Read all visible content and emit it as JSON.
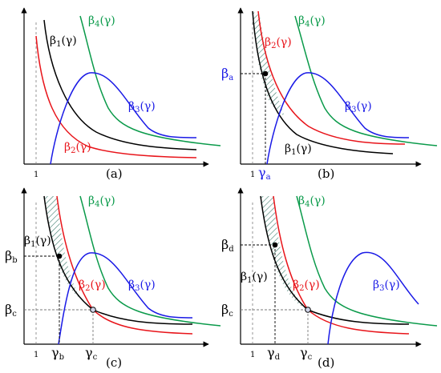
{
  "colors": {
    "black": "#000000",
    "red": "#e8141a",
    "green": "#0a9a4a",
    "blue": "#1a1ae6",
    "hatch": "#3a7a6a",
    "dash": "#7a7a7a"
  },
  "panels": [
    {
      "caption": "(a)",
      "tick_one": "1",
      "curves": [
        {
          "sym": "β",
          "sub": "1",
          "arg": "(γ)",
          "color": "black"
        },
        {
          "sym": "β",
          "sub": "2",
          "arg": "(γ)",
          "color": "red"
        },
        {
          "sym": "β",
          "sub": "3",
          "arg": "(γ)",
          "color": "blue"
        },
        {
          "sym": "β",
          "sub": "4",
          "arg": "(γ)",
          "color": "green"
        }
      ]
    },
    {
      "caption": "(b)",
      "tick_one": "1",
      "curves": [
        {
          "sym": "β",
          "sub": "1",
          "arg": "(γ)",
          "color": "black"
        },
        {
          "sym": "β",
          "sub": "2",
          "arg": "(γ)",
          "color": "red"
        },
        {
          "sym": "β",
          "sub": "3",
          "arg": "(γ)",
          "color": "blue"
        },
        {
          "sym": "β",
          "sub": "4",
          "arg": "(γ)",
          "color": "green"
        }
      ],
      "marks": {
        "y_sym": "β",
        "y_sub": "a",
        "x_sym": "γ",
        "x_sub": "a"
      }
    },
    {
      "caption": "(c)",
      "tick_one": "1",
      "curves": [
        {
          "sym": "β",
          "sub": "1",
          "arg": "(γ)",
          "color": "black"
        },
        {
          "sym": "β",
          "sub": "2",
          "arg": "(γ)",
          "color": "red"
        },
        {
          "sym": "β",
          "sub": "3",
          "arg": "(γ)",
          "color": "blue"
        },
        {
          "sym": "β",
          "sub": "4",
          "arg": "(γ)",
          "color": "green"
        }
      ],
      "marks": {
        "y_sym": "β",
        "y_sub": "b",
        "y2_sym": "β",
        "y2_sub": "c",
        "x_sym": "γ",
        "x_sub": "b",
        "x2_sym": "γ",
        "x2_sub": "c"
      }
    },
    {
      "caption": "(d)",
      "tick_one": "1",
      "curves": [
        {
          "sym": "β",
          "sub": "1",
          "arg": "(γ)",
          "color": "black"
        },
        {
          "sym": "β",
          "sub": "2",
          "arg": "(γ)",
          "color": "red"
        },
        {
          "sym": "β",
          "sub": "3",
          "arg": "(γ)",
          "color": "blue"
        },
        {
          "sym": "β",
          "sub": "4",
          "arg": "(γ)",
          "color": "green"
        }
      ],
      "marks": {
        "y_sym": "β",
        "y_sub": "d",
        "y2_sym": "β",
        "y2_sub": "c",
        "x_sym": "γ",
        "x_sub": "d",
        "x2_sym": "γ",
        "x2_sub": "c"
      }
    }
  ]
}
